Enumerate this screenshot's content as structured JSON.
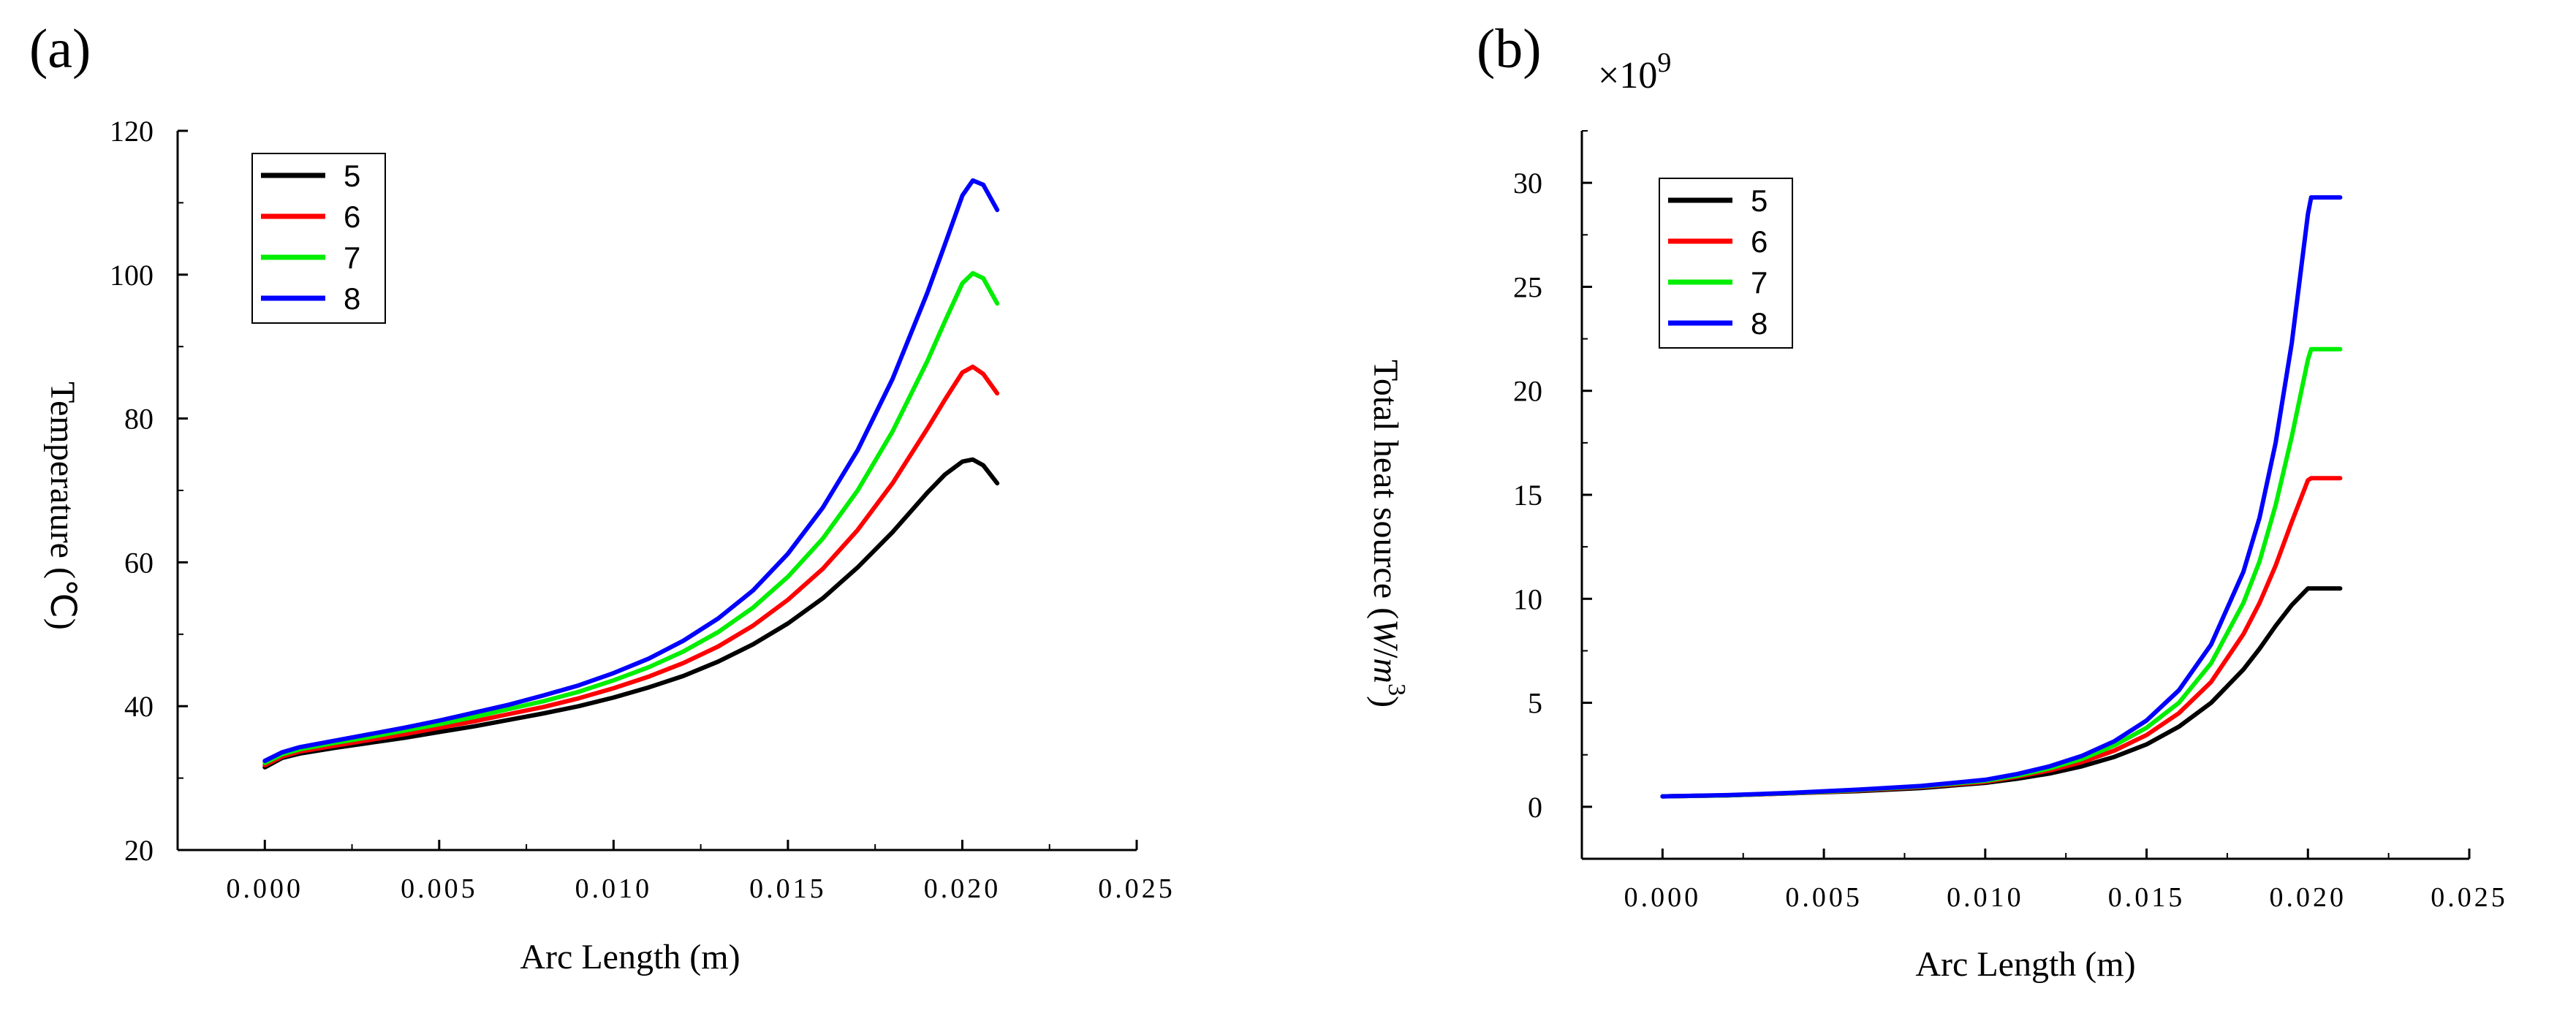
{
  "chart_data": [
    {
      "type": "line",
      "panel_label": "(a)",
      "xlabel": "Arc Length (m)",
      "ylabel": "Temperature (℃)",
      "xlim": [
        -0.0025,
        0.025
      ],
      "ylim": [
        20,
        120
      ],
      "xticks": [
        0.0,
        0.005,
        0.01,
        0.015,
        0.02,
        0.025
      ],
      "xtick_labels": [
        "0.000",
        "0.005",
        "0.010",
        "0.015",
        "0.020",
        "0.025"
      ],
      "yticks": [
        20,
        40,
        60,
        80,
        100,
        120
      ],
      "ytick_labels": [
        "20",
        "40",
        "60",
        "80",
        "100",
        "120"
      ],
      "legend_position": "top-left",
      "x": [
        0.0,
        0.0005,
        0.001,
        0.002,
        0.003,
        0.004,
        0.005,
        0.006,
        0.007,
        0.008,
        0.009,
        0.01,
        0.011,
        0.012,
        0.013,
        0.014,
        0.015,
        0.016,
        0.017,
        0.018,
        0.019,
        0.0195,
        0.02,
        0.0203,
        0.0206,
        0.021
      ],
      "series": [
        {
          "name": "5",
          "color": "#000000",
          "values": [
            31.5,
            32.8,
            33.4,
            34.2,
            34.9,
            35.6,
            36.4,
            37.2,
            38.1,
            39.0,
            40.0,
            41.2,
            42.6,
            44.2,
            46.2,
            48.6,
            51.5,
            55.0,
            59.3,
            64.2,
            69.7,
            72.2,
            74.0,
            74.3,
            73.5,
            71.0
          ]
        },
        {
          "name": "6",
          "color": "#ff0000",
          "values": [
            31.8,
            33.0,
            33.7,
            34.5,
            35.3,
            36.1,
            37.0,
            37.9,
            38.9,
            39.9,
            41.1,
            42.5,
            44.1,
            46.0,
            48.3,
            51.2,
            54.8,
            59.1,
            64.5,
            71.0,
            78.6,
            82.6,
            86.4,
            87.2,
            86.2,
            83.5
          ]
        },
        {
          "name": "7",
          "color": "#00ee00",
          "values": [
            32.1,
            33.3,
            34.0,
            34.9,
            35.7,
            36.6,
            37.5,
            38.5,
            39.6,
            40.7,
            42.0,
            43.6,
            45.4,
            47.6,
            50.3,
            53.7,
            58.0,
            63.3,
            70.0,
            78.2,
            88.0,
            93.5,
            98.8,
            100.2,
            99.5,
            96.0
          ]
        },
        {
          "name": "8",
          "color": "#0000ff",
          "values": [
            32.4,
            33.6,
            34.3,
            35.2,
            36.1,
            37.0,
            38.0,
            39.1,
            40.2,
            41.5,
            42.9,
            44.6,
            46.6,
            49.1,
            52.2,
            56.1,
            61.2,
            67.6,
            75.6,
            85.5,
            97.5,
            104.2,
            111.0,
            113.1,
            112.5,
            109.0
          ]
        }
      ]
    },
    {
      "type": "line",
      "panel_label": "(b)",
      "multiplier_prefix": "×",
      "multiplier_base": "10",
      "multiplier_exp": "9",
      "xlabel": "Arc Length (m)",
      "ylabel_text": "Total heat source (",
      "ylabel_unit_w": "W",
      "ylabel_unit_sep": "/",
      "ylabel_unit_m": "m",
      "ylabel_unit_exp": "3",
      "ylabel_close": ")",
      "xlim": [
        -0.0025,
        0.025
      ],
      "ylim": [
        -2.5,
        32.5
      ],
      "xticks": [
        0.0,
        0.005,
        0.01,
        0.015,
        0.02,
        0.025
      ],
      "xtick_labels": [
        "0.000",
        "0.005",
        "0.010",
        "0.015",
        "0.020",
        "0.025"
      ],
      "yticks": [
        0,
        5,
        10,
        15,
        20,
        25,
        30
      ],
      "ytick_labels": [
        "0",
        "5",
        "10",
        "15",
        "20",
        "25",
        "30"
      ],
      "legend_position": "top-left",
      "x": [
        0.0,
        0.002,
        0.004,
        0.006,
        0.008,
        0.01,
        0.011,
        0.012,
        0.013,
        0.014,
        0.015,
        0.016,
        0.017,
        0.018,
        0.0185,
        0.019,
        0.0195,
        0.02,
        0.0201,
        0.021
      ],
      "series": [
        {
          "name": "5",
          "color": "#000000",
          "values": [
            0.5,
            0.55,
            0.65,
            0.75,
            0.9,
            1.15,
            1.35,
            1.6,
            1.95,
            2.4,
            3.0,
            3.85,
            5.0,
            6.6,
            7.6,
            8.7,
            9.7,
            10.5,
            10.5,
            10.5
          ]
        },
        {
          "name": "6",
          "color": "#ff0000",
          "values": [
            0.5,
            0.55,
            0.65,
            0.78,
            0.95,
            1.2,
            1.45,
            1.75,
            2.15,
            2.7,
            3.45,
            4.5,
            6.0,
            8.3,
            9.8,
            11.6,
            13.7,
            15.7,
            15.8,
            15.8
          ]
        },
        {
          "name": "7",
          "color": "#00ee00",
          "values": [
            0.5,
            0.55,
            0.66,
            0.8,
            0.98,
            1.25,
            1.5,
            1.85,
            2.3,
            2.95,
            3.8,
            5.0,
            6.9,
            9.8,
            11.8,
            14.5,
            17.8,
            21.5,
            22.0,
            22.0
          ]
        },
        {
          "name": "8",
          "color": "#0000ff",
          "values": [
            0.5,
            0.56,
            0.67,
            0.82,
            1.0,
            1.3,
            1.58,
            1.95,
            2.45,
            3.15,
            4.15,
            5.6,
            7.8,
            11.3,
            13.9,
            17.5,
            22.3,
            28.5,
            29.3,
            29.3
          ]
        }
      ]
    }
  ]
}
